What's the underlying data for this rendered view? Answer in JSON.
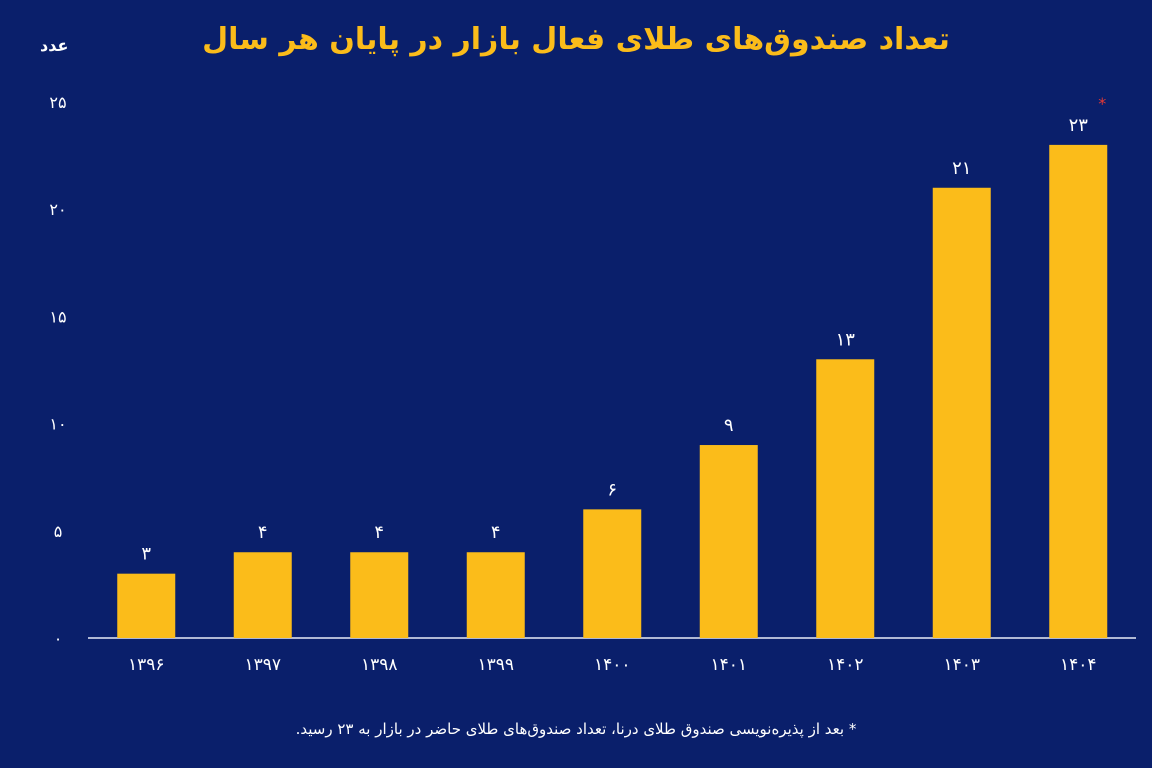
{
  "chart_data": {
    "type": "bar",
    "title": "تعداد صندوق‌های طلای فعال بازار در پایان هر سال",
    "ylabel": "عدد",
    "xlabel": "",
    "categories": [
      "۱۳۹۶",
      "۱۳۹۷",
      "۱۳۹۸",
      "۱۳۹۹",
      "۱۴۰۰",
      "۱۴۰۱",
      "۱۴۰۲",
      "۱۴۰۳",
      "۱۴۰۴"
    ],
    "values": [
      3,
      4,
      4,
      4,
      6,
      9,
      13,
      21,
      23
    ],
    "value_labels": [
      "۳",
      "۴",
      "۴",
      "۴",
      "۶",
      "۹",
      "۱۳",
      "۲۱",
      "۲۳"
    ],
    "ylim": [
      0,
      25
    ],
    "yticks": [
      0,
      5,
      10,
      15,
      20,
      25
    ],
    "ytick_labels": [
      "۰",
      "۵",
      "۱۰",
      "۱۵",
      "۲۰",
      "۲۵"
    ],
    "grid": false,
    "annotation_marker": "*",
    "annotated_category": "۱۴۰۴",
    "footnote_marker": "*",
    "footnote": "بعد از پذیره‌نویسی صندوق طلای درنا، تعداد صندوق‌های طلای حاضر در بازار به ۲۳ رسید.",
    "colors": {
      "background": "#0a1f6b",
      "bar": "#fbbc1a",
      "title": "#fbbc1a",
      "text": "#ffffff",
      "axis": "#e8ecf8",
      "marker": "#e53935"
    }
  }
}
